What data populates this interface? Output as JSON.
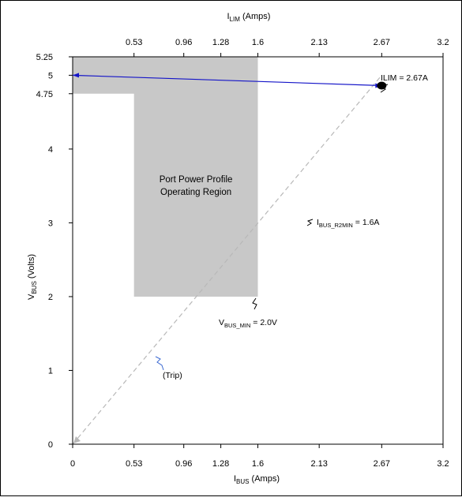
{
  "chart_data": {
    "type": "area",
    "top_axis_label": {
      "main": "I",
      "sub": "LIM",
      "rest": " (Amps)"
    },
    "x_axis_label": {
      "main": "I",
      "sub": "BUS",
      "rest": " (Amps)"
    },
    "y_axis_label": {
      "main": "V",
      "sub": "BUS",
      "rest": " (Volts)"
    },
    "xlim": [
      0,
      3.2
    ],
    "ylim": [
      0,
      5.25
    ],
    "x_ticks": [
      {
        "value": 0.53,
        "label": "0.53"
      },
      {
        "value": 0.96,
        "label": "0.96"
      },
      {
        "value": 1.28,
        "label": "1.28"
      },
      {
        "value": 1.6,
        "label": "1.6"
      },
      {
        "value": 2.13,
        "label": "2.13"
      },
      {
        "value": 2.67,
        "label": "2.67"
      },
      {
        "value": 3.2,
        "label": "3.2"
      }
    ],
    "x_origin_label": "0",
    "y_ticks": [
      {
        "value": 0,
        "label": "0"
      },
      {
        "value": 1,
        "label": "1"
      },
      {
        "value": 2,
        "label": "2"
      },
      {
        "value": 3,
        "label": "3"
      },
      {
        "value": 4,
        "label": "4"
      },
      {
        "value": 4.75,
        "label": "4.75"
      },
      {
        "value": 5,
        "label": "5"
      },
      {
        "value": 5.25,
        "label": "5.25"
      }
    ],
    "operating_region": {
      "polygon": [
        [
          0,
          5.25
        ],
        [
          1.6,
          5.25
        ],
        [
          1.6,
          2.0
        ],
        [
          0.53,
          2.0
        ],
        [
          0.53,
          4.75
        ],
        [
          0,
          4.75
        ]
      ],
      "color": "#c8c8c8",
      "label_lines": [
        "Port Power Profile",
        "Operating Region"
      ]
    },
    "trip_line": {
      "from": [
        0,
        0
      ],
      "to": [
        2.67,
        5.0
      ],
      "color": "#b8b8b8"
    },
    "vbus_line": {
      "from": [
        0,
        5.0
      ],
      "to": [
        2.67,
        4.86
      ],
      "color": "#1414c8"
    },
    "ilim_point": {
      "x": 2.67,
      "y": 4.86,
      "label": "ILIM = 2.67A"
    },
    "annotations": {
      "ibus_r2min": {
        "main": "I",
        "sub": "BUS_R2MIN",
        "rest": " = 1.6A"
      },
      "vbus_min": {
        "main": "V",
        "sub": "BUS_MIN",
        "rest": " = 2.0V"
      },
      "trip": {
        "text": "(Trip)",
        "color": "#3c6ad2"
      }
    },
    "grid": false
  }
}
